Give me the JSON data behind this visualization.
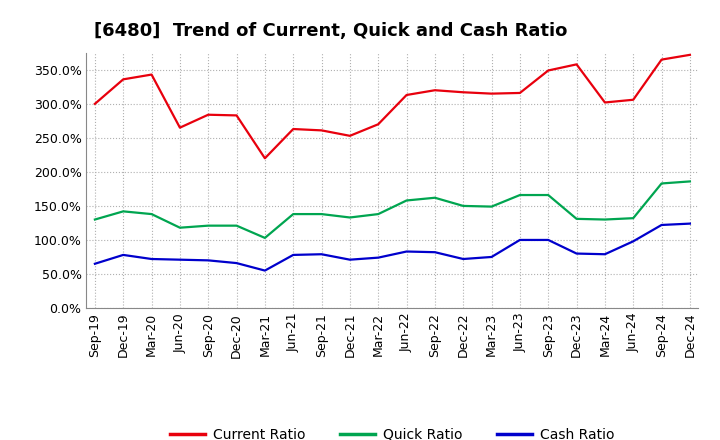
{
  "title": "[6480]  Trend of Current, Quick and Cash Ratio",
  "x_labels": [
    "Sep-19",
    "Dec-19",
    "Mar-20",
    "Jun-20",
    "Sep-20",
    "Dec-20",
    "Mar-21",
    "Jun-21",
    "Sep-21",
    "Dec-21",
    "Mar-22",
    "Jun-22",
    "Sep-22",
    "Dec-22",
    "Mar-23",
    "Jun-23",
    "Sep-23",
    "Dec-23",
    "Mar-24",
    "Jun-24",
    "Sep-24",
    "Dec-24"
  ],
  "current_ratio": [
    300,
    336,
    343,
    265,
    284,
    283,
    220,
    263,
    261,
    253,
    270,
    313,
    320,
    317,
    315,
    316,
    349,
    358,
    302,
    306,
    365,
    372
  ],
  "quick_ratio": [
    130,
    142,
    138,
    118,
    121,
    121,
    103,
    138,
    138,
    133,
    138,
    158,
    162,
    150,
    149,
    166,
    166,
    131,
    130,
    132,
    183,
    186
  ],
  "cash_ratio": [
    65,
    78,
    72,
    71,
    70,
    66,
    55,
    78,
    79,
    71,
    74,
    83,
    82,
    72,
    75,
    100,
    100,
    80,
    79,
    98,
    122,
    124
  ],
  "current_color": "#e8000d",
  "quick_color": "#00a550",
  "cash_color": "#0000cc",
  "bg_color": "#ffffff",
  "plot_bg_color": "#ffffff",
  "grid_color": "#b0b0b0",
  "ylim": [
    0,
    375
  ],
  "yticks": [
    0,
    50,
    100,
    150,
    200,
    250,
    300,
    350
  ],
  "legend_labels": [
    "Current Ratio",
    "Quick Ratio",
    "Cash Ratio"
  ],
  "title_fontsize": 13,
  "tick_fontsize": 9,
  "legend_fontsize": 10
}
